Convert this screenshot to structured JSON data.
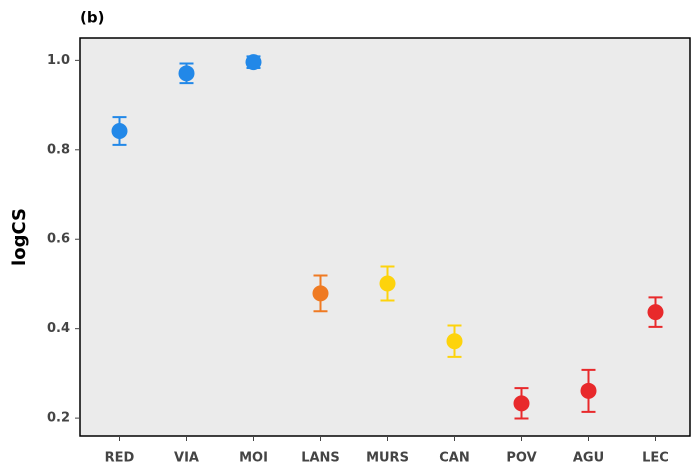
{
  "chart_data": {
    "type": "errorbar",
    "title": "(b)",
    "y_label": "logCS",
    "categories": [
      "RED",
      "VIA",
      "MOI",
      "LANS",
      "MURS",
      "CAN",
      "POV",
      "AGU",
      "LEC"
    ],
    "values": [
      0.842,
      0.971,
      0.996,
      0.479,
      0.501,
      0.372,
      0.233,
      0.261,
      0.437
    ],
    "errors": [
      0.031,
      0.022,
      0.013,
      0.04,
      0.038,
      0.035,
      0.034,
      0.047,
      0.033
    ],
    "colors": [
      "#2288e8",
      "#2288e8",
      "#2288e8",
      "#ef7a22",
      "#fdd30c",
      "#fdd30c",
      "#e8292b",
      "#e8292b",
      "#e8292b"
    ],
    "ylim": [
      0.16,
      1.05
    ],
    "yticks": [
      {
        "value": 0.2,
        "label": "0.2"
      },
      {
        "value": 0.4,
        "label": "0.4"
      },
      {
        "value": 0.6,
        "label": "0.6"
      },
      {
        "value": 0.8,
        "label": "0.8"
      },
      {
        "value": 1.0,
        "label": "1.0"
      }
    ]
  }
}
